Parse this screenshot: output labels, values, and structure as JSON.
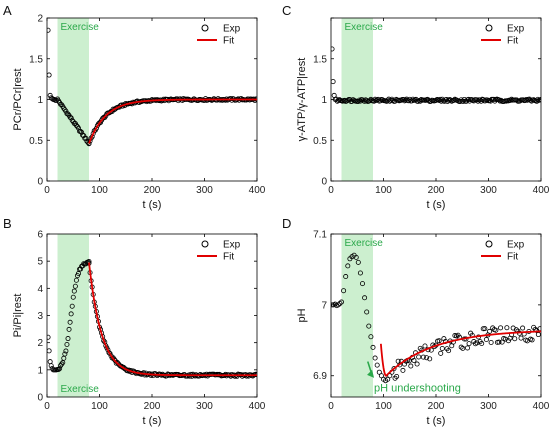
{
  "colors": {
    "exercise_fill": "#ccefcf",
    "exercise_text": "#2aa84a",
    "fit": "#e00000",
    "marker": "#000000"
  },
  "exercise": {
    "start": 20,
    "end": 80
  },
  "chart_data": [
    {
      "panel": "A",
      "type": "scatter",
      "exercise_label": "Exercise",
      "exercise_label_pos": "top",
      "xlabel": "t  (s)",
      "ylabel": "PCr/PCr|rest",
      "xlim": [
        0,
        400
      ],
      "ylim": [
        0,
        2
      ],
      "xticks": [
        0,
        100,
        200,
        300,
        400
      ],
      "yticks": [
        0,
        0.5,
        1,
        1.5,
        2
      ],
      "ytick_labels": [
        "0",
        "0.5",
        "1",
        "1.5",
        "2"
      ],
      "legend": {
        "placement": "top-right",
        "exp": "Exp",
        "fit": "Fit"
      },
      "series": [
        {
          "kind": "exp",
          "x": [
            2,
            4,
            6,
            8,
            10,
            12,
            14,
            16,
            18
          ],
          "y": [
            1.85,
            1.3,
            1.05,
            1.02,
            1.01,
            1.0,
            1.0,
            0.99,
            0.99
          ]
        },
        {
          "kind": "exp_func",
          "segments": [
            {
              "from": 20,
              "to": 80,
              "model": "linear",
              "y0": 1.0,
              "y1": 0.46
            },
            {
              "from": 80,
              "to": 400,
              "model": "exp_recovery",
              "base": 1.0,
              "start": 0.46,
              "tau": 32
            }
          ],
          "step": 2,
          "noise": 0.012
        },
        {
          "kind": "fit",
          "segments": [
            {
              "from": 80,
              "to": 400,
              "model": "exp_recovery",
              "base": 1.0,
              "start": 0.46,
              "tau": 32
            }
          ]
        }
      ]
    },
    {
      "panel": "C",
      "type": "scatter",
      "exercise_label": "Exercise",
      "exercise_label_pos": "top",
      "xlabel": "t  (s)",
      "ylabel": "γ-ATP/γ-ATP|rest",
      "xlim": [
        0,
        400
      ],
      "ylim": [
        0,
        2
      ],
      "xticks": [
        0,
        100,
        200,
        300,
        400
      ],
      "yticks": [
        0,
        0.5,
        1,
        1.5,
        2
      ],
      "ytick_labels": [
        "0",
        "0.5",
        "1",
        "1.5",
        ""
      ],
      "legend": {
        "placement": "top-right",
        "exp": "Exp",
        "fit": "Fit"
      },
      "series": [
        {
          "kind": "exp",
          "x": [
            2,
            4,
            6,
            8
          ],
          "y": [
            1.62,
            1.22,
            1.05,
            1.0
          ]
        },
        {
          "kind": "exp_func",
          "segments": [
            {
              "from": 10,
              "to": 400,
              "model": "const",
              "value": 0.99
            }
          ],
          "step": 2,
          "noise": 0.015
        }
      ]
    },
    {
      "panel": "B",
      "type": "scatter",
      "exercise_label": "Exercise",
      "exercise_label_pos": "bottom",
      "xlabel": "t  (s)",
      "ylabel": "Pi/Pi|rest",
      "xlim": [
        0,
        400
      ],
      "ylim": [
        0,
        6
      ],
      "xticks": [
        0,
        100,
        200,
        300,
        400
      ],
      "yticks": [
        0,
        1,
        2,
        3,
        4,
        5,
        6
      ],
      "ytick_labels": [
        "0",
        "1",
        "2",
        "3",
        "4",
        "5",
        "6"
      ],
      "legend": {
        "placement": "top-right",
        "exp": "Exp",
        "fit": "Fit"
      },
      "series": [
        {
          "kind": "exp",
          "x": [
            2,
            4,
            6,
            8,
            10,
            12,
            14,
            16,
            18
          ],
          "y": [
            2.2,
            1.7,
            1.3,
            1.15,
            1.05,
            1.0,
            1.0,
            1.0,
            1.0
          ]
        },
        {
          "kind": "exp_func",
          "segments": [
            {
              "from": 20,
              "to": 80,
              "model": "sigmoid_rise",
              "y0": 1.0,
              "y1": 4.95
            },
            {
              "from": 80,
              "to": 400,
              "model": "exp_recovery",
              "base": 0.8,
              "start": 4.95,
              "tau": 24
            }
          ],
          "step": 2,
          "noise": 0.04
        },
        {
          "kind": "fit",
          "segments": [
            {
              "from": 80,
              "to": 400,
              "model": "exp_recovery",
              "base": 0.8,
              "start": 4.95,
              "tau": 24
            }
          ]
        }
      ]
    },
    {
      "panel": "D",
      "type": "scatter",
      "exercise_label": "Exercise",
      "exercise_label_pos": "top",
      "xlabel": "t  (s)",
      "ylabel": "pH",
      "xlim": [
        0,
        400
      ],
      "ylim": [
        6.87,
        7.1
      ],
      "xticks": [
        0,
        100,
        200,
        300,
        400
      ],
      "yticks": [
        6.9,
        7,
        7.1
      ],
      "ytick_labels": [
        "6.9",
        "7",
        "7.1"
      ],
      "legend": {
        "placement": "top-right",
        "exp": "Exp",
        "fit": "Fit"
      },
      "annotation": "pH undershooting",
      "series": [
        {
          "kind": "exp",
          "x": [
            2,
            5,
            8,
            11,
            14,
            17,
            20,
            24,
            28,
            32,
            36,
            40,
            44,
            48,
            52,
            56,
            60,
            64,
            68,
            72,
            76,
            80,
            84,
            88,
            92,
            96,
            100,
            104,
            108,
            112,
            116,
            120
          ],
          "y": [
            7.0,
            7.0,
            7.001,
            6.999,
            7.0,
            7.002,
            7.004,
            7.02,
            7.04,
            7.055,
            7.065,
            7.068,
            7.07,
            7.067,
            7.06,
            7.045,
            7.03,
            7.01,
            6.99,
            6.97,
            6.955,
            6.94,
            6.925,
            6.915,
            6.905,
            6.9,
            6.895,
            6.893,
            6.895,
            6.9,
            6.905,
            6.91
          ]
        },
        {
          "kind": "exp_func",
          "segments": [
            {
              "from": 122,
              "to": 400,
              "model": "exp_recovery",
              "base": 6.965,
              "start": 6.905,
              "tau": 95
            }
          ],
          "step": 3,
          "noise": 0.012
        },
        {
          "kind": "fit",
          "segments": [
            {
              "from": 95,
              "to": 400,
              "model": "undershoot",
              "base": 6.965,
              "min": 6.9,
              "tmin": 105,
              "tau": 90
            }
          ]
        }
      ]
    }
  ]
}
